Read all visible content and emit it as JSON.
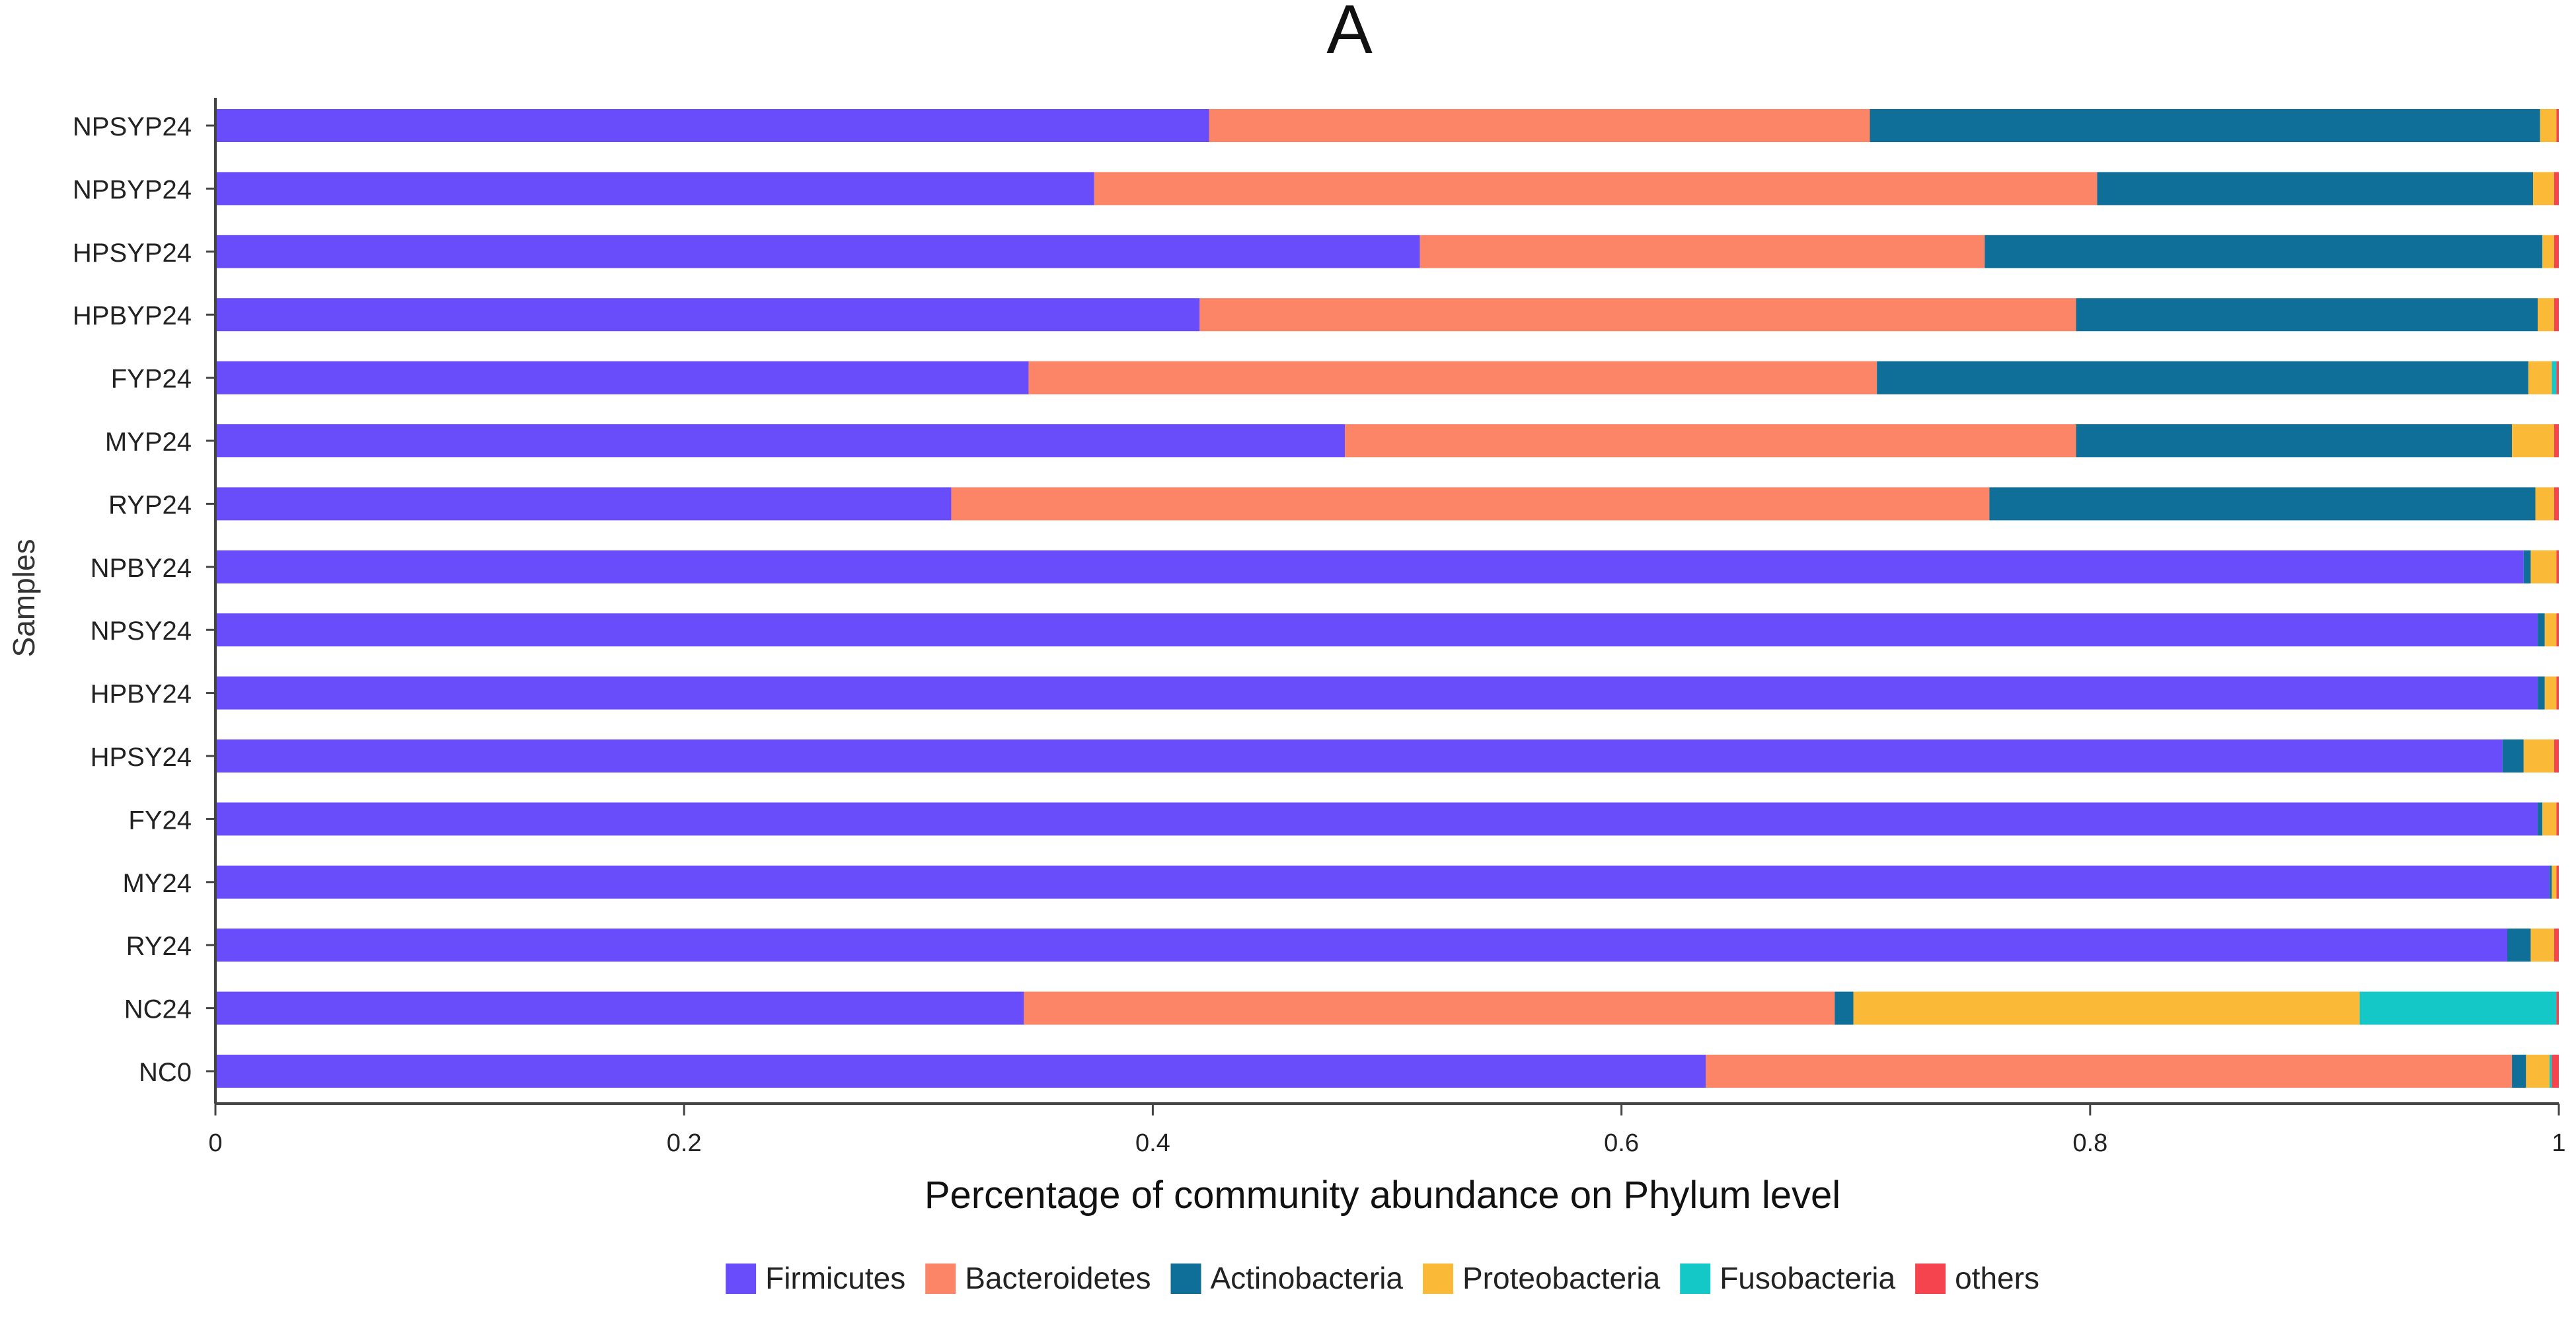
{
  "chart_data": {
    "type": "bar",
    "orientation": "horizontal",
    "stacked": true,
    "title": "A",
    "xlabel": "Percentage of community abundance on Phylum level",
    "ylabel": "Samples",
    "xlim": [
      0,
      1
    ],
    "xticks": [
      "0",
      "0.2",
      "0.4",
      "0.6",
      "0.8",
      "1"
    ],
    "grid": false,
    "legend_position": "bottom",
    "categories": [
      "NPSYP24",
      "NPBYP24",
      "HPSYP24",
      "HPBYP24",
      "FYP24",
      "MYP24",
      "RYP24",
      "NPBY24",
      "NPSY24",
      "HPBY24",
      "HPSY24",
      "FY24",
      "MY24",
      "RY24",
      "NC24",
      "NC0"
    ],
    "series": [
      {
        "name": "Firmicutes",
        "color": "#6a4dfa",
        "values": [
          0.424,
          0.375,
          0.514,
          0.42,
          0.347,
          0.482,
          0.314,
          0.985,
          0.991,
          0.991,
          0.976,
          0.991,
          0.996,
          0.978,
          0.345,
          0.636
        ]
      },
      {
        "name": "Bacteroidetes",
        "color": "#fc8467",
        "values": [
          0.282,
          0.428,
          0.241,
          0.374,
          0.362,
          0.312,
          0.443,
          0.0,
          0.0,
          0.0,
          0.0,
          0.0,
          0.0,
          0.0,
          0.346,
          0.344
        ]
      },
      {
        "name": "Actinobacteria",
        "color": "#0f6f98",
        "values": [
          0.286,
          0.186,
          0.238,
          0.197,
          0.278,
          0.186,
          0.233,
          0.003,
          0.003,
          0.003,
          0.009,
          0.002,
          0.001,
          0.01,
          0.008,
          0.006
        ]
      },
      {
        "name": "Proteobacteria",
        "color": "#fbb938",
        "values": [
          0.007,
          0.009,
          0.005,
          0.007,
          0.01,
          0.018,
          0.008,
          0.011,
          0.005,
          0.005,
          0.013,
          0.006,
          0.002,
          0.01,
          0.216,
          0.01
        ]
      },
      {
        "name": "Fusobacteria",
        "color": "#14c8c8",
        "values": [
          0.0,
          0.0,
          0.0,
          0.0,
          0.002,
          0.0,
          0.0,
          0.0,
          0.0,
          0.0,
          0.0,
          0.0,
          0.0,
          0.0,
          0.084,
          0.001
        ]
      },
      {
        "name": "others",
        "color": "#f5444e",
        "values": [
          0.001,
          0.002,
          0.002,
          0.002,
          0.001,
          0.002,
          0.002,
          0.001,
          0.001,
          0.001,
          0.002,
          0.001,
          0.001,
          0.002,
          0.001,
          0.003
        ]
      }
    ]
  }
}
